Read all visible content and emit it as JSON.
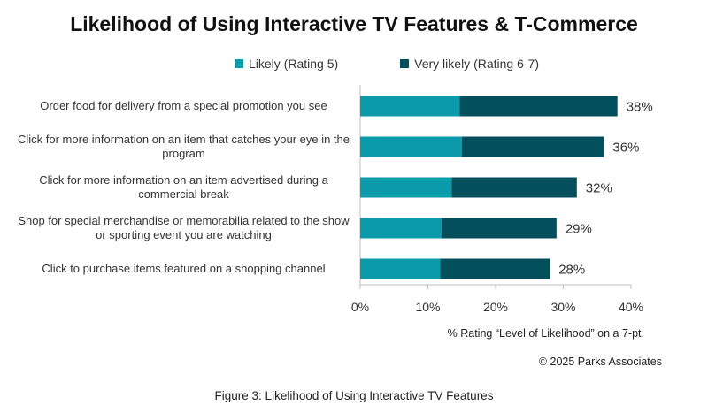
{
  "chart_data": {
    "type": "bar",
    "orientation": "horizontal",
    "stacked": true,
    "title": "Likelihood of Using Interactive TV Features & T-Commerce",
    "categories": [
      "Order food for delivery from a special promotion you see",
      "Click for more information on an item that catches your eye in the program",
      "Click for more information on an item advertised during a commercial break",
      "Shop for special merchandise or memorabilia related to the show or sporting event you are watching",
      "Click to purchase items featured on a shopping channel"
    ],
    "series": [
      {
        "name": "Likely (Rating 5)",
        "color": "#0a9aaa",
        "values": [
          14.7,
          15.0,
          13.5,
          12.0,
          11.8
        ]
      },
      {
        "name": "Very likely (Rating 6-7)",
        "color": "#034f5b",
        "values": [
          23.3,
          21.0,
          18.5,
          17.0,
          16.2
        ]
      }
    ],
    "totals_labels": [
      "38%",
      "36%",
      "32%",
      "29%",
      "28%"
    ],
    "xlim": [
      0,
      40
    ],
    "xticks": [
      "0%",
      "10%",
      "20%",
      "30%",
      "40%"
    ],
    "xlabel": "% Rating “Level of Likelihood” on a 7-pt.",
    "legend_position": "top",
    "grid": false
  },
  "credit": "© 2025 Parks Associates",
  "caption": "Figure 3: Likelihood of Using Interactive TV Features"
}
